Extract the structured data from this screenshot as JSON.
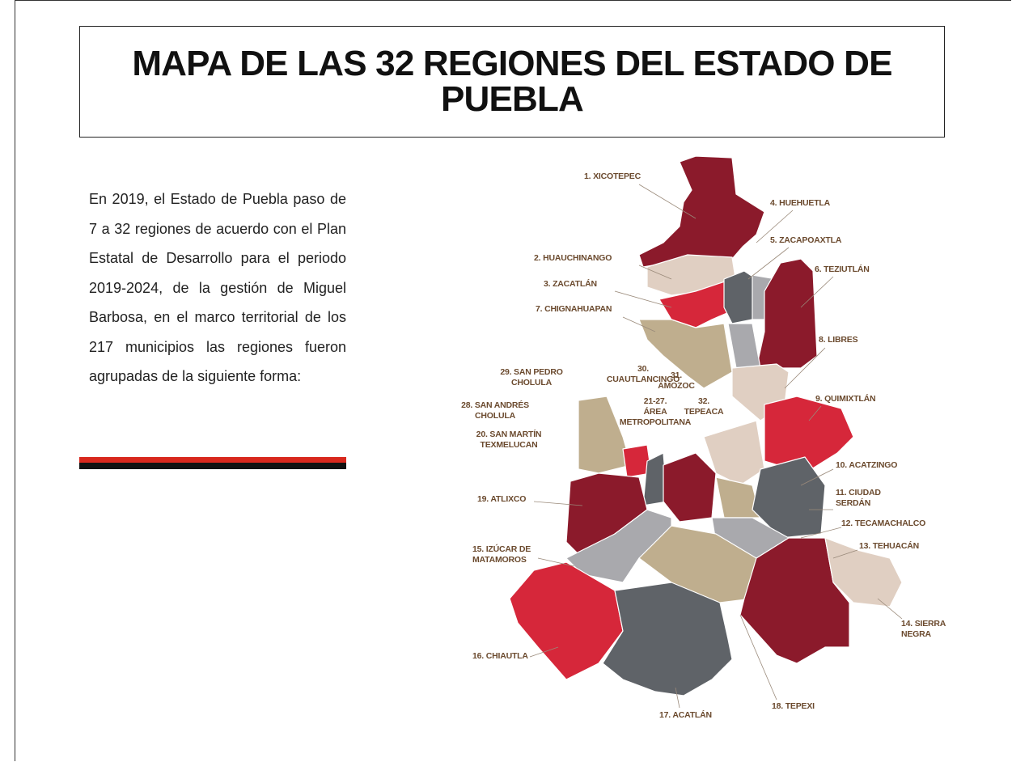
{
  "slide": {
    "title": "MAPA DE LAS 32 REGIONES DEL ESTADO DE PUEBLA",
    "paragraph": "En 2019, el Estado de Puebla paso de 7 a 32 regiones de acuerdo con el Plan Estatal de Desarrollo para el periodo 2019-2024, de la gestión de Miguel Barbosa, en el marco territorial de los 217 municipios las regiones fueron agrupadas de la siguiente forma:",
    "map_labels": [
      [
        "1. XICOTEPEC"
      ],
      [
        "2. HUAUCHINANGO"
      ],
      [
        "3. ZACATLÁN"
      ],
      [
        "7. CHIGNAHUAPAN"
      ],
      [
        "4. HUEHUETLA"
      ],
      [
        "5. ZACAPOAXTLA"
      ],
      [
        "6. TEZIUTLÁN"
      ],
      [
        "8. LIBRES"
      ],
      [
        "29. SAN PEDRO",
        "CHOLULA"
      ],
      [
        "30.",
        "CUAUTLANCINGO"
      ],
      [
        "31.",
        "AMOZOC"
      ],
      [
        "28. SAN ANDRÉS",
        "CHOLULA"
      ],
      [
        "21-27.",
        "ÁREA",
        "METROPOLITANA"
      ],
      [
        "32.",
        "TEPEACA"
      ],
      [
        "9. QUIMIXTLÁN"
      ],
      [
        "20. SAN MARTÍN",
        "TEXMELUCAN"
      ],
      [
        "10. ACATZINGO"
      ],
      [
        "19. ATLIXCO"
      ],
      [
        "11. CIUDAD",
        "SERDÁN"
      ],
      [
        "12. TECAMACHALCO"
      ],
      [
        "13. TEHUACÁN"
      ],
      [
        "15. IZÚCAR DE",
        "MATAMOROS"
      ],
      [
        "14. SIERRA",
        "NEGRA"
      ],
      [
        "16. CHIAUTLA"
      ],
      [
        "18. TEPEXI"
      ],
      [
        "17. ACATLÁN"
      ]
    ]
  }
}
